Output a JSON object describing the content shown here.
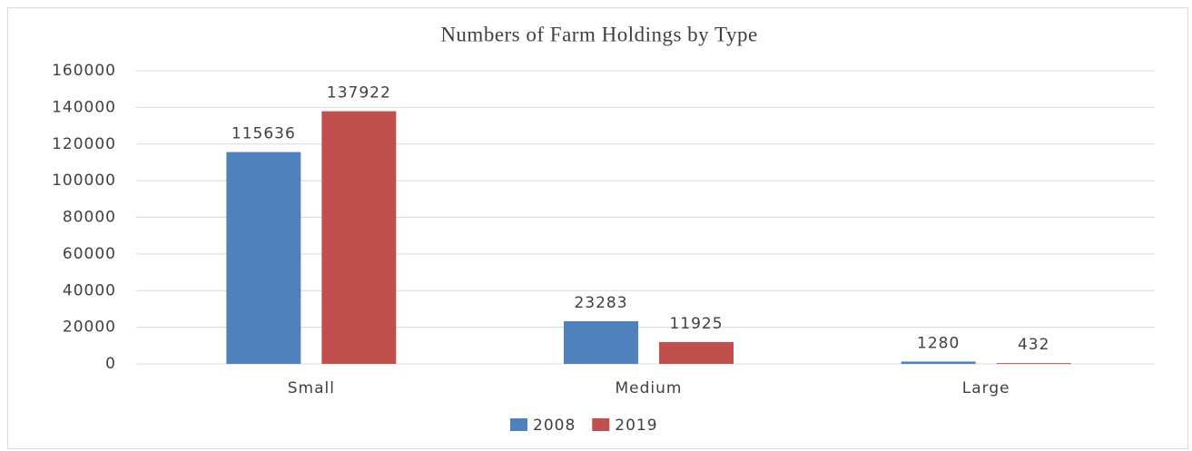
{
  "chart_data": {
    "type": "bar",
    "title": "Numbers of Farm Holdings by Type",
    "categories": [
      "Small",
      "Medium",
      "Large"
    ],
    "series": [
      {
        "name": "2008",
        "color": "#4f81bd",
        "values": [
          115636,
          23283,
          1280
        ]
      },
      {
        "name": "2019",
        "color": "#c0504d",
        "values": [
          137922,
          11925,
          432
        ]
      }
    ],
    "ylim": [
      0,
      160000
    ],
    "yticks": [
      0,
      20000,
      40000,
      60000,
      80000,
      100000,
      120000,
      140000,
      160000
    ],
    "grid": true,
    "legend": "bottom"
  }
}
